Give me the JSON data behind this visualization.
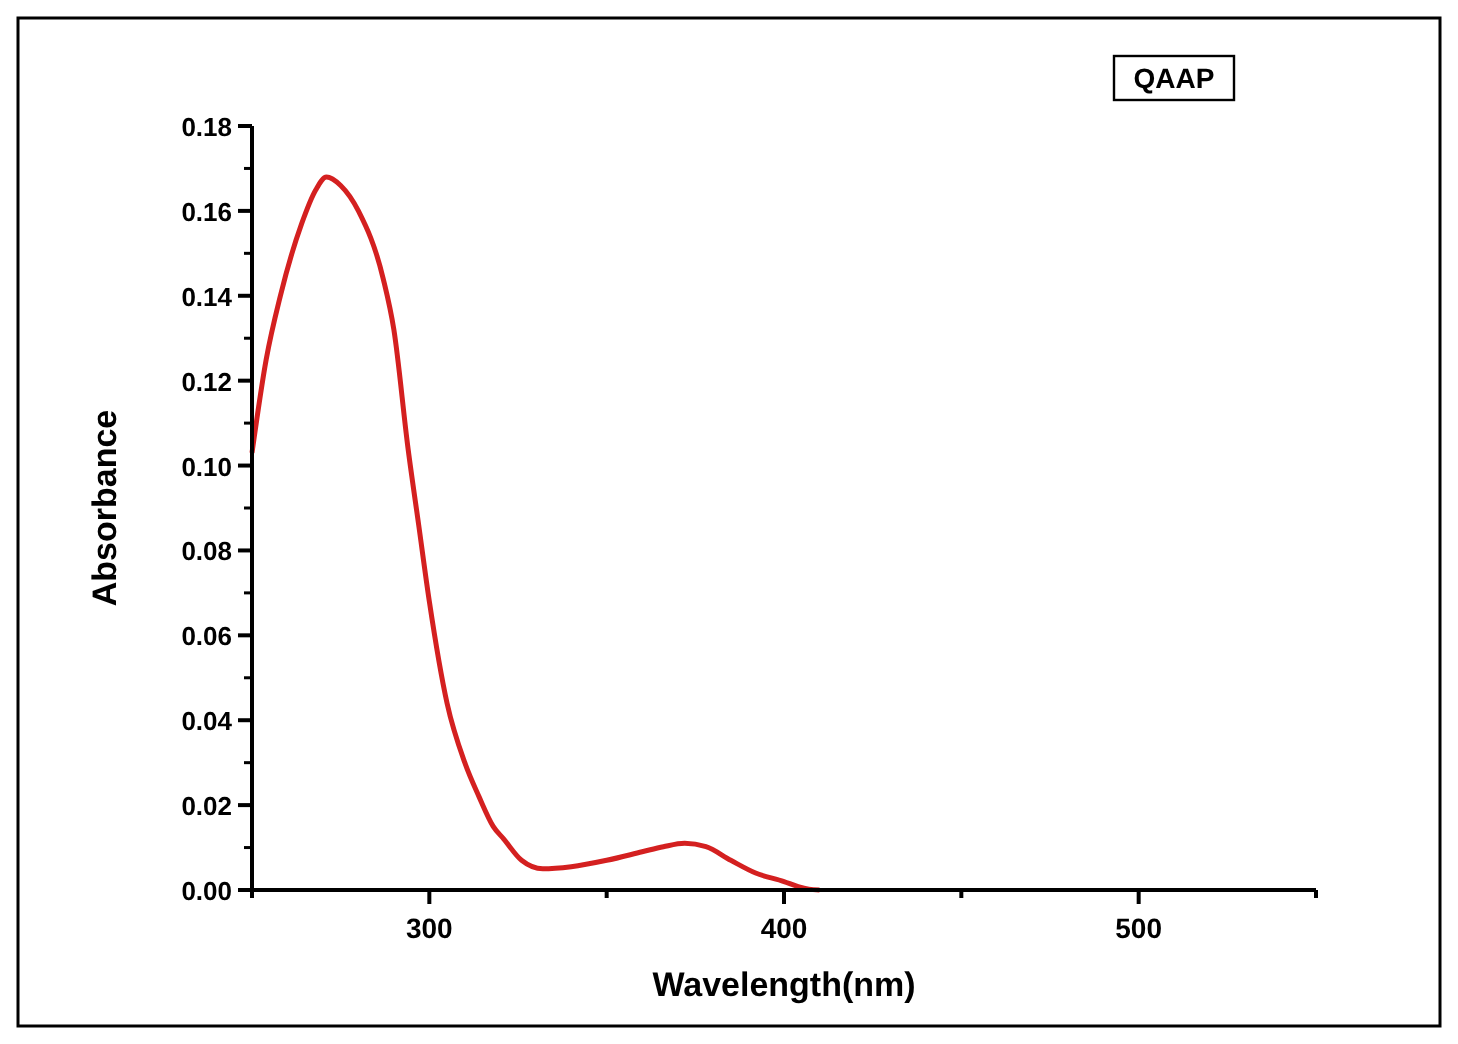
{
  "chart_data": {
    "type": "line",
    "xlabel": "Wavelength(nm)",
    "ylabel": "Absorbance",
    "annotations": [
      "QAAP"
    ],
    "xlim": [
      250,
      550
    ],
    "xticks": [
      {
        "value": 250,
        "label": null
      },
      300,
      {
        "value": 350,
        "label": null
      },
      400,
      {
        "value": 450,
        "label": null
      },
      500,
      {
        "value": 550,
        "label": null
      }
    ],
    "ylim": [
      0,
      0.18
    ],
    "yticks": [
      {
        "value": 0,
        "label": "0.00"
      },
      {
        "value": 0.02,
        "label": "0.02"
      },
      {
        "value": 0.04,
        "label": "0.04"
      },
      {
        "value": 0.06,
        "label": "0.06"
      },
      {
        "value": 0.08,
        "label": "0.08"
      },
      {
        "value": 0.1,
        "label": "0.10"
      },
      {
        "value": 0.12,
        "label": "0.12"
      },
      {
        "value": 0.14,
        "label": "0.14"
      },
      {
        "value": 0.16,
        "label": "0.16"
      },
      {
        "value": 0.18,
        "label": "0.18"
      }
    ],
    "grid": false,
    "marker": "none",
    "line_style": "solid",
    "series": [
      {
        "color": "#d42020",
        "x": [
          250,
          254,
          258,
          264,
          268,
          271,
          275,
          280,
          287,
          290,
          294,
          297,
          300,
          305,
          310,
          314,
          318,
          321,
          326,
          332,
          340,
          350,
          360,
          366,
          372,
          378,
          385,
          392,
          400,
          404,
          407,
          410
        ],
        "values": [
          0.103,
          0.125,
          0.14,
          0.157,
          0.165,
          0.168,
          0.166,
          0.16,
          0.144,
          0.132,
          0.104,
          0.086,
          0.068,
          0.044,
          0.03,
          0.022,
          0.015,
          0.012,
          0.007,
          0.005,
          0.0055,
          0.007,
          0.009,
          0.0102,
          0.011,
          0.0102,
          0.007,
          0.004,
          0.002,
          0.0008,
          0.0002,
          0
        ]
      }
    ]
  }
}
